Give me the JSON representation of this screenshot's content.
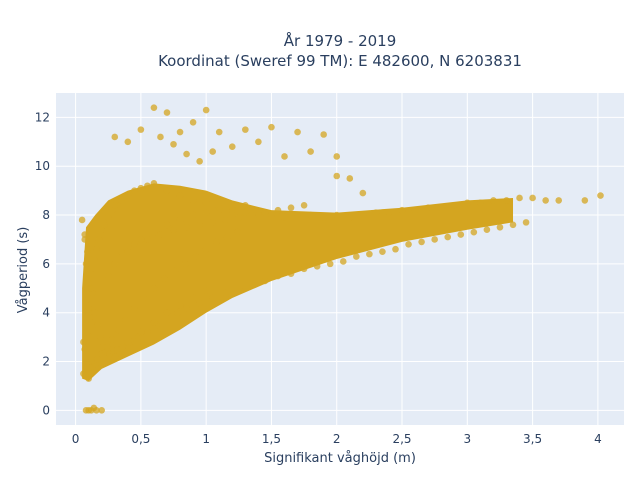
{
  "chart_data": {
    "type": "scatter",
    "title": [
      "År 1979 - 2019",
      "Koordinat (Sweref 99 TM): E 482600, N 6203831"
    ],
    "xlabel": "Signifikant våghöjd (m)",
    "ylabel": "Vågperiod (s)",
    "xlim": [
      -0.15,
      4.2
    ],
    "ylim": [
      -0.6,
      13.0
    ],
    "xticks": [
      0,
      0.5,
      1,
      1.5,
      2,
      2.5,
      3,
      3.5,
      4
    ],
    "xtick_labels": [
      "0",
      "0,5",
      "1",
      "1,5",
      "2",
      "2,5",
      "3",
      "3,5",
      "4"
    ],
    "yticks": [
      0,
      2,
      4,
      6,
      8,
      10,
      12
    ],
    "ytick_labels": [
      "0",
      "2",
      "4",
      "6",
      "8",
      "10",
      "12"
    ],
    "grid": true,
    "legend": "none",
    "colors": {
      "marker": "#d4a520",
      "plot_bg": "#e5ecf6",
      "text": "#2a3f5f"
    },
    "series": [
      {
        "marker_opacity": 0.75,
        "x": [
          0.06,
          0.08,
          0.1,
          0.12,
          0.07,
          0.09,
          0.11,
          0.08,
          0.1,
          0.12,
          0.14,
          0.16,
          0.18,
          0.2,
          0.22,
          0.25,
          0.28,
          0.3,
          0.35,
          0.4,
          0.45,
          0.5,
          0.55,
          0.6,
          0.7,
          0.8,
          0.9,
          1.0,
          1.1,
          1.2,
          1.3,
          1.4,
          1.5,
          1.6,
          1.7,
          1.8,
          1.9,
          2.0,
          2.1,
          2.2,
          2.3,
          2.4,
          2.5,
          2.6,
          2.7,
          2.8,
          2.9,
          3.0,
          3.1,
          3.2,
          3.3,
          3.4,
          3.5,
          3.6,
          3.7,
          3.9,
          4.02,
          0.05,
          0.07,
          0.09,
          0.11,
          0.13,
          0.15,
          0.17,
          0.19,
          0.21,
          0.23,
          0.26,
          0.29,
          0.32,
          0.36,
          0.42,
          0.48,
          0.55,
          0.62,
          0.7,
          0.78,
          0.85,
          0.95,
          1.05,
          1.15,
          1.25,
          1.35,
          1.45,
          1.55,
          1.65,
          1.75,
          1.85,
          1.95,
          2.05,
          2.15,
          2.25,
          2.35,
          2.45,
          2.55,
          2.65,
          2.75,
          2.85,
          2.95,
          3.05,
          3.15,
          3.25,
          3.35,
          3.45,
          0.3,
          0.4,
          0.5,
          0.6,
          0.65,
          0.7,
          0.75,
          0.8,
          0.85,
          0.9,
          0.95,
          1.0,
          1.05,
          1.1,
          1.2,
          1.3,
          1.4,
          1.5,
          1.6,
          1.7,
          1.8,
          1.9,
          2.0,
          0.08,
          0.1,
          0.12,
          0.14,
          0.16,
          0.2,
          0.25,
          0.3,
          0.35,
          0.4,
          0.5,
          0.6,
          0.7,
          0.8,
          0.9,
          1.0,
          0.07,
          0.08,
          0.09,
          0.1,
          0.11,
          0.12,
          0.13,
          0.15,
          0.17,
          0.2,
          0.24,
          0.28,
          0.33,
          0.38,
          0.45,
          0.52,
          0.6,
          0.68,
          0.76,
          0.84,
          0.92,
          1.0,
          1.08,
          1.16,
          1.24,
          0.35,
          0.45,
          0.55,
          0.65,
          0.75,
          0.85,
          0.95,
          1.05,
          1.15,
          1.25,
          1.35,
          1.45,
          1.55,
          1.65,
          1.75,
          2.0,
          2.1,
          2.2,
          0.25,
          0.3,
          0.4,
          0.5,
          0.6,
          0.7,
          0.8,
          0.9,
          1.0,
          1.1,
          1.2,
          1.3,
          0.06,
          0.08,
          0.1,
          0.12
        ],
        "y": [
          1.5,
          1.4,
          1.3,
          1.5,
          2.5,
          3.2,
          3.8,
          4.5,
          5.2,
          5.8,
          6.2,
          6.6,
          7.0,
          7.4,
          7.6,
          7.9,
          8.2,
          8.4,
          8.6,
          8.8,
          9.0,
          9.1,
          9.2,
          9.3,
          9.0,
          8.8,
          8.6,
          8.5,
          8.3,
          8.2,
          8.1,
          8.0,
          8.0,
          7.9,
          8.0,
          8.0,
          7.9,
          8.0,
          7.9,
          8.0,
          8.1,
          8.1,
          8.2,
          8.2,
          8.3,
          8.3,
          8.4,
          8.5,
          8.5,
          8.6,
          8.6,
          8.7,
          8.7,
          8.6,
          8.6,
          8.6,
          8.8,
          7.8,
          7.2,
          6.5,
          5.6,
          4.8,
          4.0,
          3.5,
          3.0,
          2.6,
          2.4,
          2.3,
          2.4,
          2.5,
          2.6,
          2.8,
          3.0,
          3.2,
          3.5,
          3.7,
          4.0,
          4.2,
          4.4,
          4.6,
          4.8,
          5.0,
          5.2,
          5.3,
          5.5,
          5.6,
          5.8,
          5.9,
          6.0,
          6.1,
          6.3,
          6.4,
          6.5,
          6.6,
          6.8,
          6.9,
          7.0,
          7.1,
          7.2,
          7.3,
          7.4,
          7.5,
          7.6,
          7.7,
          11.2,
          11.0,
          11.5,
          12.4,
          11.2,
          12.2,
          10.9,
          11.4,
          10.5,
          11.8,
          10.2,
          12.3,
          10.6,
          11.4,
          10.8,
          11.5,
          11.0,
          11.6,
          10.4,
          11.4,
          10.6,
          11.3,
          10.4,
          0.0,
          0.0,
          0.0,
          0.1,
          0.0,
          0.0,
          2.0,
          2.2,
          2.5,
          2.8,
          3.2,
          3.6,
          4.0,
          4.3,
          4.6,
          4.9,
          7.0,
          6.0,
          5.0,
          4.0,
          3.0,
          2.0,
          1.8,
          1.9,
          2.1,
          2.3,
          2.6,
          2.9,
          3.3,
          3.7,
          4.2,
          4.6,
          5.0,
          5.4,
          5.7,
          6.0,
          6.3,
          6.6,
          6.9,
          7.1,
          7.3,
          6.5,
          6.8,
          7.0,
          7.2,
          7.4,
          7.5,
          7.6,
          7.7,
          7.8,
          7.9,
          8.0,
          8.1,
          8.2,
          8.3,
          8.4,
          9.6,
          9.5,
          8.9,
          5.5,
          6.0,
          6.5,
          7.0,
          7.3,
          7.6,
          7.8,
          8.0,
          8.1,
          8.2,
          8.3,
          8.4,
          2.8,
          3.5,
          4.2,
          5.0
        ]
      }
    ]
  }
}
